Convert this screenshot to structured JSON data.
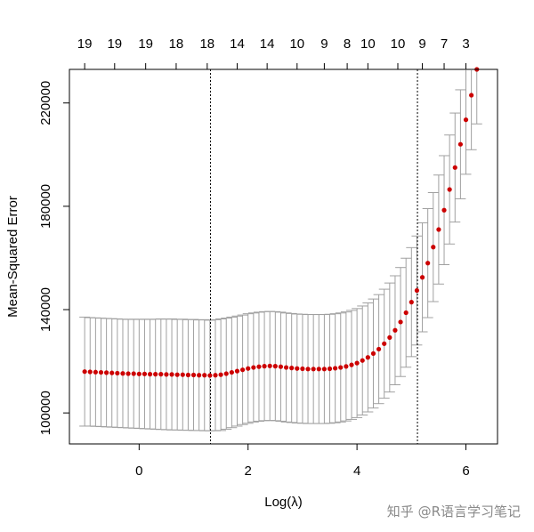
{
  "chart_data": {
    "type": "scatter",
    "xlabel": "Log(λ)",
    "ylabel": "Mean-Squared Error",
    "xlim": [
      -1.28,
      6.58
    ],
    "ylim": [
      88000,
      233000
    ],
    "x_ticks": [
      0,
      2,
      4,
      6
    ],
    "y_ticks": [
      100000,
      140000,
      180000,
      220000
    ],
    "top_ticks": [
      "19",
      "19",
      "19",
      "18",
      "18",
      "14",
      "14",
      "10",
      "9",
      "8",
      "10",
      "10",
      "9",
      "7",
      "3"
    ],
    "top_tick_x": [
      -1.0,
      -0.45,
      0.12,
      0.68,
      1.25,
      1.8,
      2.35,
      2.9,
      3.4,
      3.82,
      4.2,
      4.75,
      5.2,
      5.6,
      6.0
    ],
    "vlines": [
      1.31,
      5.11
    ],
    "point_color": "#cc0000",
    "errorbar_color": "#a0a0a0",
    "series": [
      {
        "x": [
          -1.0,
          -0.9,
          -0.8,
          -0.7,
          -0.6,
          -0.5,
          -0.4,
          -0.3,
          -0.2,
          -0.1,
          0.0,
          0.1,
          0.2,
          0.3,
          0.4,
          0.5,
          0.6,
          0.7,
          0.8,
          0.9,
          1.0,
          1.1,
          1.2,
          1.3,
          1.4,
          1.5,
          1.6,
          1.7,
          1.8,
          1.9,
          2.0,
          2.1,
          2.2,
          2.3,
          2.4,
          2.5,
          2.6,
          2.7,
          2.8,
          2.9,
          3.0,
          3.1,
          3.2,
          3.3,
          3.4,
          3.5,
          3.6,
          3.7,
          3.8,
          3.9,
          4.0,
          4.1,
          4.2,
          4.3,
          4.4,
          4.5,
          4.6,
          4.7,
          4.8,
          4.9,
          5.0,
          5.1,
          5.2,
          5.3,
          5.4,
          5.5,
          5.6,
          5.7,
          5.8,
          5.9,
          6.0,
          6.1,
          6.2
        ],
        "y": [
          116000,
          115900,
          115800,
          115700,
          115600,
          115500,
          115400,
          115300,
          115200,
          115200,
          115100,
          115100,
          115000,
          115000,
          115000,
          114900,
          114900,
          114800,
          114800,
          114700,
          114700,
          114600,
          114600,
          114500,
          114600,
          114800,
          115200,
          115700,
          116200,
          116700,
          117200,
          117600,
          117900,
          118100,
          118200,
          118100,
          117900,
          117600,
          117400,
          117200,
          117100,
          117000,
          117000,
          117000,
          117000,
          117100,
          117300,
          117600,
          118000,
          118600,
          119300,
          120300,
          121500,
          123000,
          124700,
          126800,
          129200,
          132000,
          135200,
          138800,
          142900,
          147400,
          152500,
          158000,
          164200,
          171000,
          178500,
          186500,
          195000,
          204000,
          213500,
          223000,
          233000
        ],
        "ymin": [
          94900,
          94900,
          94800,
          94700,
          94600,
          94500,
          94400,
          94300,
          94200,
          94100,
          94000,
          93900,
          93800,
          93700,
          93600,
          93500,
          93400,
          93400,
          93300,
          93300,
          93200,
          93200,
          93100,
          93100,
          93100,
          93200,
          93700,
          94300,
          94900,
          95500,
          96000,
          96500,
          96800,
          97000,
          97100,
          97000,
          96800,
          96500,
          96300,
          96100,
          96000,
          95900,
          95900,
          95900,
          95900,
          96000,
          96200,
          96500,
          96900,
          97500,
          98200,
          99200,
          100400,
          101900,
          103600,
          105700,
          108100,
          110900,
          114100,
          117700,
          121800,
          126300,
          131400,
          136900,
          143100,
          149900,
          157400,
          165400,
          173900,
          182900,
          192400,
          201900,
          211900
        ],
        "ymax": [
          137100,
          136900,
          136800,
          136700,
          136600,
          136500,
          136400,
          136300,
          136200,
          136300,
          136200,
          136300,
          136200,
          136300,
          136400,
          136300,
          136400,
          136200,
          136300,
          136100,
          136200,
          136000,
          136100,
          135900,
          136100,
          136400,
          136700,
          137100,
          137500,
          137900,
          138400,
          138700,
          139000,
          139200,
          139300,
          139200,
          139000,
          138700,
          138500,
          138300,
          138200,
          138100,
          138100,
          138100,
          138100,
          138200,
          138400,
          138700,
          139100,
          139700,
          140400,
          141400,
          142600,
          144100,
          145800,
          147900,
          150300,
          153100,
          156300,
          159900,
          164000,
          168500,
          173600,
          179100,
          185300,
          192100,
          199600,
          207600,
          216100,
          225100,
          234600,
          244100,
          254100
        ]
      }
    ]
  },
  "watermark": "知乎 @R语言学习笔记"
}
